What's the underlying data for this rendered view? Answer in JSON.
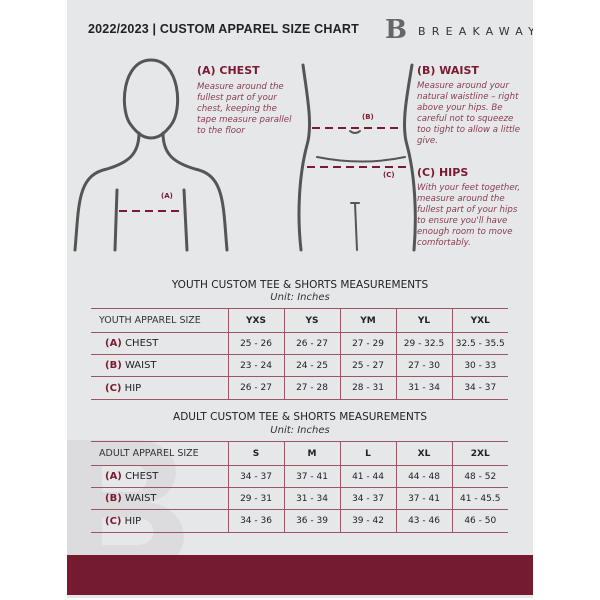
{
  "header": {
    "title": "2022/2023  |  CUSTOM APPAREL SIZE CHART",
    "brand": "BREAKAWAY",
    "logo_letter": "B"
  },
  "guides": {
    "chest": {
      "heading": "(A) CHEST",
      "text": "Measure around the fullest part of your chest, keeping the tape measure parallel to the floor",
      "marker": "(A)"
    },
    "waist": {
      "heading": "(B) WAIST",
      "text": "Measure around your natural waistline – right above your hips. Be careful not to squeeze too tight to allow a little give.",
      "marker": "(B)"
    },
    "hips": {
      "heading": "(C) HIPS",
      "text": "With your feet together, measure around the fullest part of your hips to ensure you'll have enough room to move comfortably.",
      "marker": "(C)"
    }
  },
  "youth": {
    "title": "YOUTH CUSTOM TEE & SHORTS MEASUREMENTS",
    "unit": "Unit: Inches",
    "header": "YOUTH APPAREL SIZE",
    "sizes": [
      "YXS",
      "YS",
      "YM",
      "YL",
      "YXL"
    ],
    "rows": [
      {
        "code": "(A)",
        "label": "CHEST",
        "values": [
          "25 - 26",
          "26 - 27",
          "27 - 29",
          "29 - 32.5",
          "32.5 - 35.5"
        ]
      },
      {
        "code": "(B)",
        "label": "WAIST",
        "values": [
          "23 - 24",
          "24 - 25",
          "25 - 27",
          "27 - 30",
          "30 - 33"
        ]
      },
      {
        "code": "(C)",
        "label": "HIP",
        "values": [
          "26 - 27",
          "27 - 28",
          "28 - 31",
          "31 - 34",
          "34 - 37"
        ]
      }
    ]
  },
  "adult": {
    "title": "ADULT CUSTOM TEE & SHORTS MEASUREMENTS",
    "unit": "Unit: Inches",
    "header": "ADULT APPAREL SIZE",
    "sizes": [
      "S",
      "M",
      "L",
      "XL",
      "2XL"
    ],
    "rows": [
      {
        "code": "(A)",
        "label": "CHEST",
        "values": [
          "34 - 37",
          "37 - 41",
          "41 - 44",
          "44 - 48",
          "48 - 52"
        ]
      },
      {
        "code": "(B)",
        "label": "WAIST",
        "values": [
          "29 - 31",
          "31 - 34",
          "34 - 37",
          "37 - 41",
          "41 - 45.5"
        ]
      },
      {
        "code": "(C)",
        "label": "HIP",
        "values": [
          "34 - 36",
          "36 - 39",
          "39 - 42",
          "43 - 46",
          "46 - 50"
        ]
      }
    ]
  },
  "colors": {
    "accent": "#741b30",
    "background": "#e6e7e9"
  }
}
